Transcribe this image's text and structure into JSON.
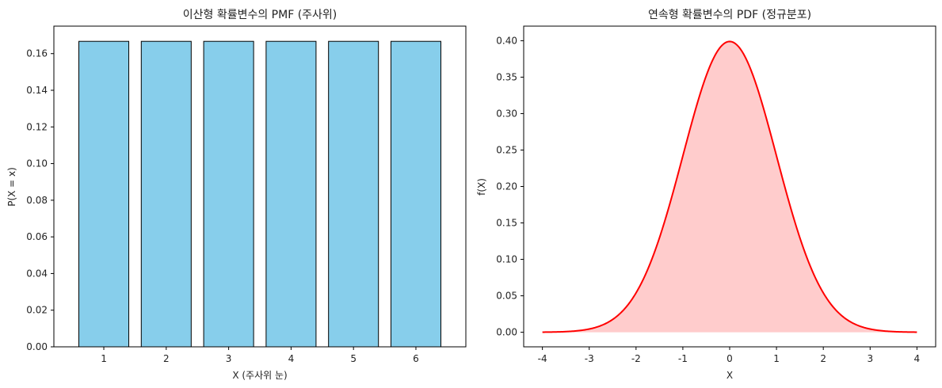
{
  "chart_data": [
    {
      "type": "bar",
      "title": "이산형 확률변수의 PMF (주사위)",
      "xlabel": "X (주사위 눈)",
      "ylabel": "P(X = x)",
      "categories": [
        "1",
        "2",
        "3",
        "4",
        "5",
        "6"
      ],
      "values": [
        0.1667,
        0.1667,
        0.1667,
        0.1667,
        0.1667,
        0.1667
      ],
      "ylim": [
        0,
        0.175
      ],
      "yticks": [
        0.0,
        0.02,
        0.04,
        0.06,
        0.08,
        0.1,
        0.12,
        0.14,
        0.16
      ],
      "ytick_labels": [
        "0.00",
        "0.02",
        "0.04",
        "0.06",
        "0.08",
        "0.10",
        "0.12",
        "0.14",
        "0.16"
      ],
      "bar_color": "#87ceeb",
      "edge_color": "#000000",
      "grid": false
    },
    {
      "type": "area",
      "title": "연속형 확률변수의 PDF (정규분포)",
      "xlabel": "X",
      "ylabel": "f(X)",
      "distribution": "normal",
      "mean": 0,
      "std": 1,
      "xlim": [
        -4.4,
        4.4
      ],
      "ylim": [
        -0.02,
        0.42
      ],
      "xticks": [
        -4,
        -3,
        -2,
        -1,
        0,
        1,
        2,
        3,
        4
      ],
      "xtick_labels": [
        "-4",
        "-3",
        "-2",
        "-1",
        "0",
        "1",
        "2",
        "3",
        "4"
      ],
      "yticks": [
        0.0,
        0.05,
        0.1,
        0.15,
        0.2,
        0.25,
        0.3,
        0.35,
        0.4
      ],
      "ytick_labels": [
        "0.00",
        "0.05",
        "0.10",
        "0.15",
        "0.20",
        "0.25",
        "0.30",
        "0.35",
        "0.40"
      ],
      "line_color": "#ff0000",
      "fill_color": "#ffcccc",
      "grid": false
    }
  ]
}
